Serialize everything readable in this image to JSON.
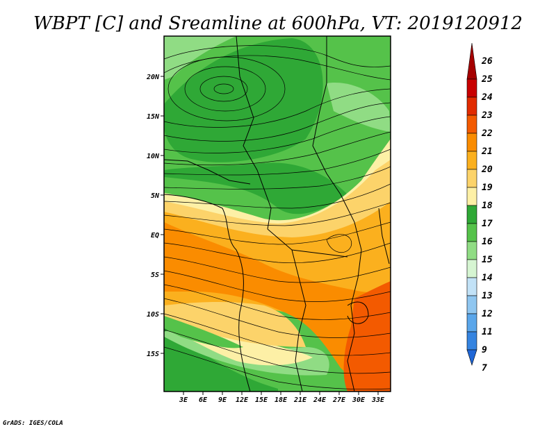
{
  "title": "WBPT [C] and Sreamline at 600hPa, VT: 2019120912",
  "footer": "GrADS: IGES/COLA",
  "map": {
    "variable": "WBPT [C]",
    "level": "600hPa",
    "valid_time": "2019120912",
    "lon_ticks": [
      "3E",
      "6E",
      "9E",
      "12E",
      "15E",
      "18E",
      "21E",
      "24E",
      "27E",
      "30E",
      "33E"
    ],
    "lat_ticks": [
      "20N",
      "15N",
      "10N",
      "5N",
      "EQ",
      "5S",
      "10S",
      "15S"
    ]
  },
  "colorbar": {
    "labels": [
      "26",
      "25",
      "24",
      "23",
      "22",
      "21",
      "20",
      "19",
      "18",
      "17",
      "16",
      "15",
      "14",
      "13",
      "12",
      "11",
      "9",
      "7"
    ],
    "colors": [
      "#a50000",
      "#c80000",
      "#e12b00",
      "#f35a00",
      "#fa8c00",
      "#fbb01e",
      "#fcd36a",
      "#fdf0a6",
      "#2fa836",
      "#55c24a",
      "#90dc84",
      "#d6f5d2",
      "#c2e2f7",
      "#8fc6f0",
      "#5aa6ea",
      "#3584e0",
      "#1f66d6"
    ]
  }
}
